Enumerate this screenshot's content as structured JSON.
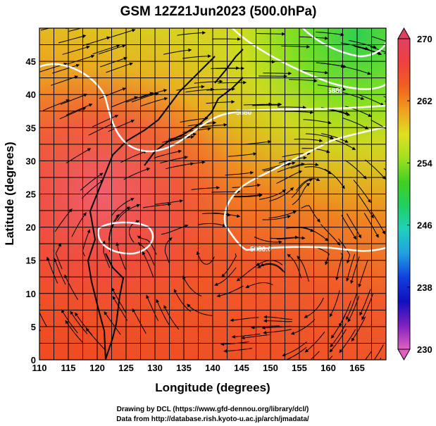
{
  "chart_data": {
    "type": "heatmap",
    "title": "GSM 12Z21Jun2023 (500.0hPa)",
    "xlabel": "Longitude (degrees)",
    "ylabel": "Latitude  (degrees)",
    "xlim": [
      110,
      170
    ],
    "ylim": [
      0,
      50
    ],
    "x_ticks": [
      110,
      115,
      120,
      125,
      130,
      135,
      140,
      145,
      150,
      155,
      160,
      165
    ],
    "y_ticks": [
      0,
      5,
      10,
      15,
      20,
      25,
      30,
      35,
      40,
      45
    ],
    "grid": true,
    "colorbar": {
      "min": 230,
      "max": 270,
      "labels": [
        "270",
        "262",
        "254",
        "246",
        "238",
        "230"
      ],
      "label_values": [
        270,
        262,
        254,
        246,
        238,
        230
      ],
      "colors": [
        "#e060c0",
        "#8020c0",
        "#1010c0",
        "#1040e0",
        "#20a0e0",
        "#20d0c0",
        "#20d060",
        "#40d020",
        "#a0e020",
        "#e0e020",
        "#f0a020",
        "#f06020",
        "#f04040",
        "#e04060"
      ]
    },
    "contour_labels": [
      "5880",
      "5880",
      "5880.0"
    ],
    "contour_color": "#ffffff"
  },
  "credits": {
    "line1": "Drawing by DCL (https://www.gfd-dennou.org/library/dcl/)",
    "line2": "Data from http://database.rish.kyoto-u.ac.jp/arch/jmadata/"
  }
}
